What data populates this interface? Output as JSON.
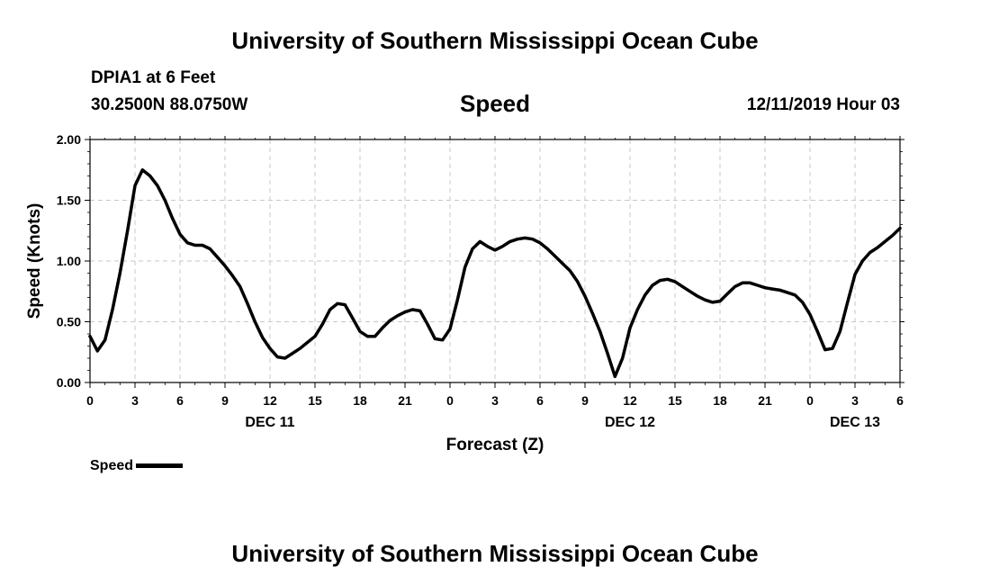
{
  "header": {
    "title_top": "University of Southern Mississippi Ocean Cube",
    "title_bottom": "University of Southern Mississippi Ocean Cube",
    "station": "DPIA1 at 6 Feet",
    "coords": "30.2500N 88.0750W",
    "datetime": "12/11/2019 Hour 03"
  },
  "legend": {
    "label": "Speed"
  },
  "chart_data": {
    "type": "line",
    "title": "Speed",
    "xlabel": "Forecast (Z)",
    "ylabel": "Speed (Knots)",
    "xlim": [
      0,
      54
    ],
    "ylim": [
      0,
      2
    ],
    "grid": true,
    "yticks": [
      "0.00",
      "0.50",
      "1.00",
      "1.50",
      "2.00"
    ],
    "ytick_values": [
      0,
      0.5,
      1.0,
      1.5,
      2.0
    ],
    "xtick_labels": [
      "0",
      "3",
      "6",
      "9",
      "12",
      "15",
      "18",
      "21",
      "0",
      "3",
      "6",
      "9",
      "12",
      "15",
      "18",
      "21",
      "0",
      "3",
      "6"
    ],
    "day_labels": [
      {
        "label": "DEC 11",
        "x": 12
      },
      {
        "label": "DEC 12",
        "x": 36
      },
      {
        "label": "DEC 13",
        "x": 51
      }
    ],
    "series": [
      {
        "name": "Speed",
        "color": "#000000",
        "x": [
          0,
          0.5,
          1,
          1.5,
          2,
          2.5,
          3,
          3.5,
          4,
          4.5,
          5,
          5.5,
          6,
          6.5,
          7,
          7.5,
          8,
          8.5,
          9,
          9.5,
          10,
          10.5,
          11,
          11.5,
          12,
          12.5,
          13,
          13.5,
          14,
          14.5,
          15,
          15.5,
          16,
          16.5,
          17,
          17.5,
          18,
          18.5,
          19,
          19.5,
          20,
          20.5,
          21,
          21.5,
          22,
          22.5,
          23,
          23.5,
          24,
          24.5,
          25,
          25.5,
          26,
          26.5,
          27,
          27.5,
          28,
          28.5,
          29,
          29.5,
          30,
          30.5,
          31,
          31.5,
          32,
          32.5,
          33,
          33.5,
          34,
          34.5,
          35,
          35.5,
          36,
          36.5,
          37,
          37.5,
          38,
          38.5,
          39,
          39.5,
          40,
          40.5,
          41,
          41.5,
          42,
          42.5,
          43,
          43.5,
          44,
          44.5,
          45,
          45.5,
          46,
          46.5,
          47,
          47.5,
          48,
          48.5,
          49,
          49.5,
          50,
          50.5,
          51,
          51.5,
          52,
          52.5,
          53,
          53.5,
          54
        ],
        "values": [
          0.38,
          0.26,
          0.35,
          0.6,
          0.9,
          1.25,
          1.62,
          1.75,
          1.7,
          1.62,
          1.5,
          1.35,
          1.22,
          1.15,
          1.13,
          1.13,
          1.1,
          1.03,
          0.96,
          0.88,
          0.79,
          0.65,
          0.5,
          0.37,
          0.28,
          0.21,
          0.2,
          0.24,
          0.28,
          0.33,
          0.38,
          0.48,
          0.6,
          0.65,
          0.64,
          0.53,
          0.42,
          0.38,
          0.38,
          0.45,
          0.51,
          0.55,
          0.58,
          0.6,
          0.59,
          0.48,
          0.36,
          0.35,
          0.44,
          0.68,
          0.95,
          1.1,
          1.16,
          1.12,
          1.09,
          1.12,
          1.16,
          1.18,
          1.19,
          1.18,
          1.15,
          1.1,
          1.04,
          0.98,
          0.92,
          0.83,
          0.71,
          0.57,
          0.42,
          0.24,
          0.05,
          0.2,
          0.45,
          0.6,
          0.72,
          0.8,
          0.84,
          0.85,
          0.83,
          0.79,
          0.75,
          0.71,
          0.68,
          0.66,
          0.67,
          0.73,
          0.79,
          0.82,
          0.82,
          0.8,
          0.78,
          0.77,
          0.76,
          0.74,
          0.72,
          0.66,
          0.56,
          0.42,
          0.27,
          0.28,
          0.42,
          0.66,
          0.89,
          1.0,
          1.07,
          1.11,
          1.16,
          1.21,
          1.27
        ]
      }
    ]
  }
}
